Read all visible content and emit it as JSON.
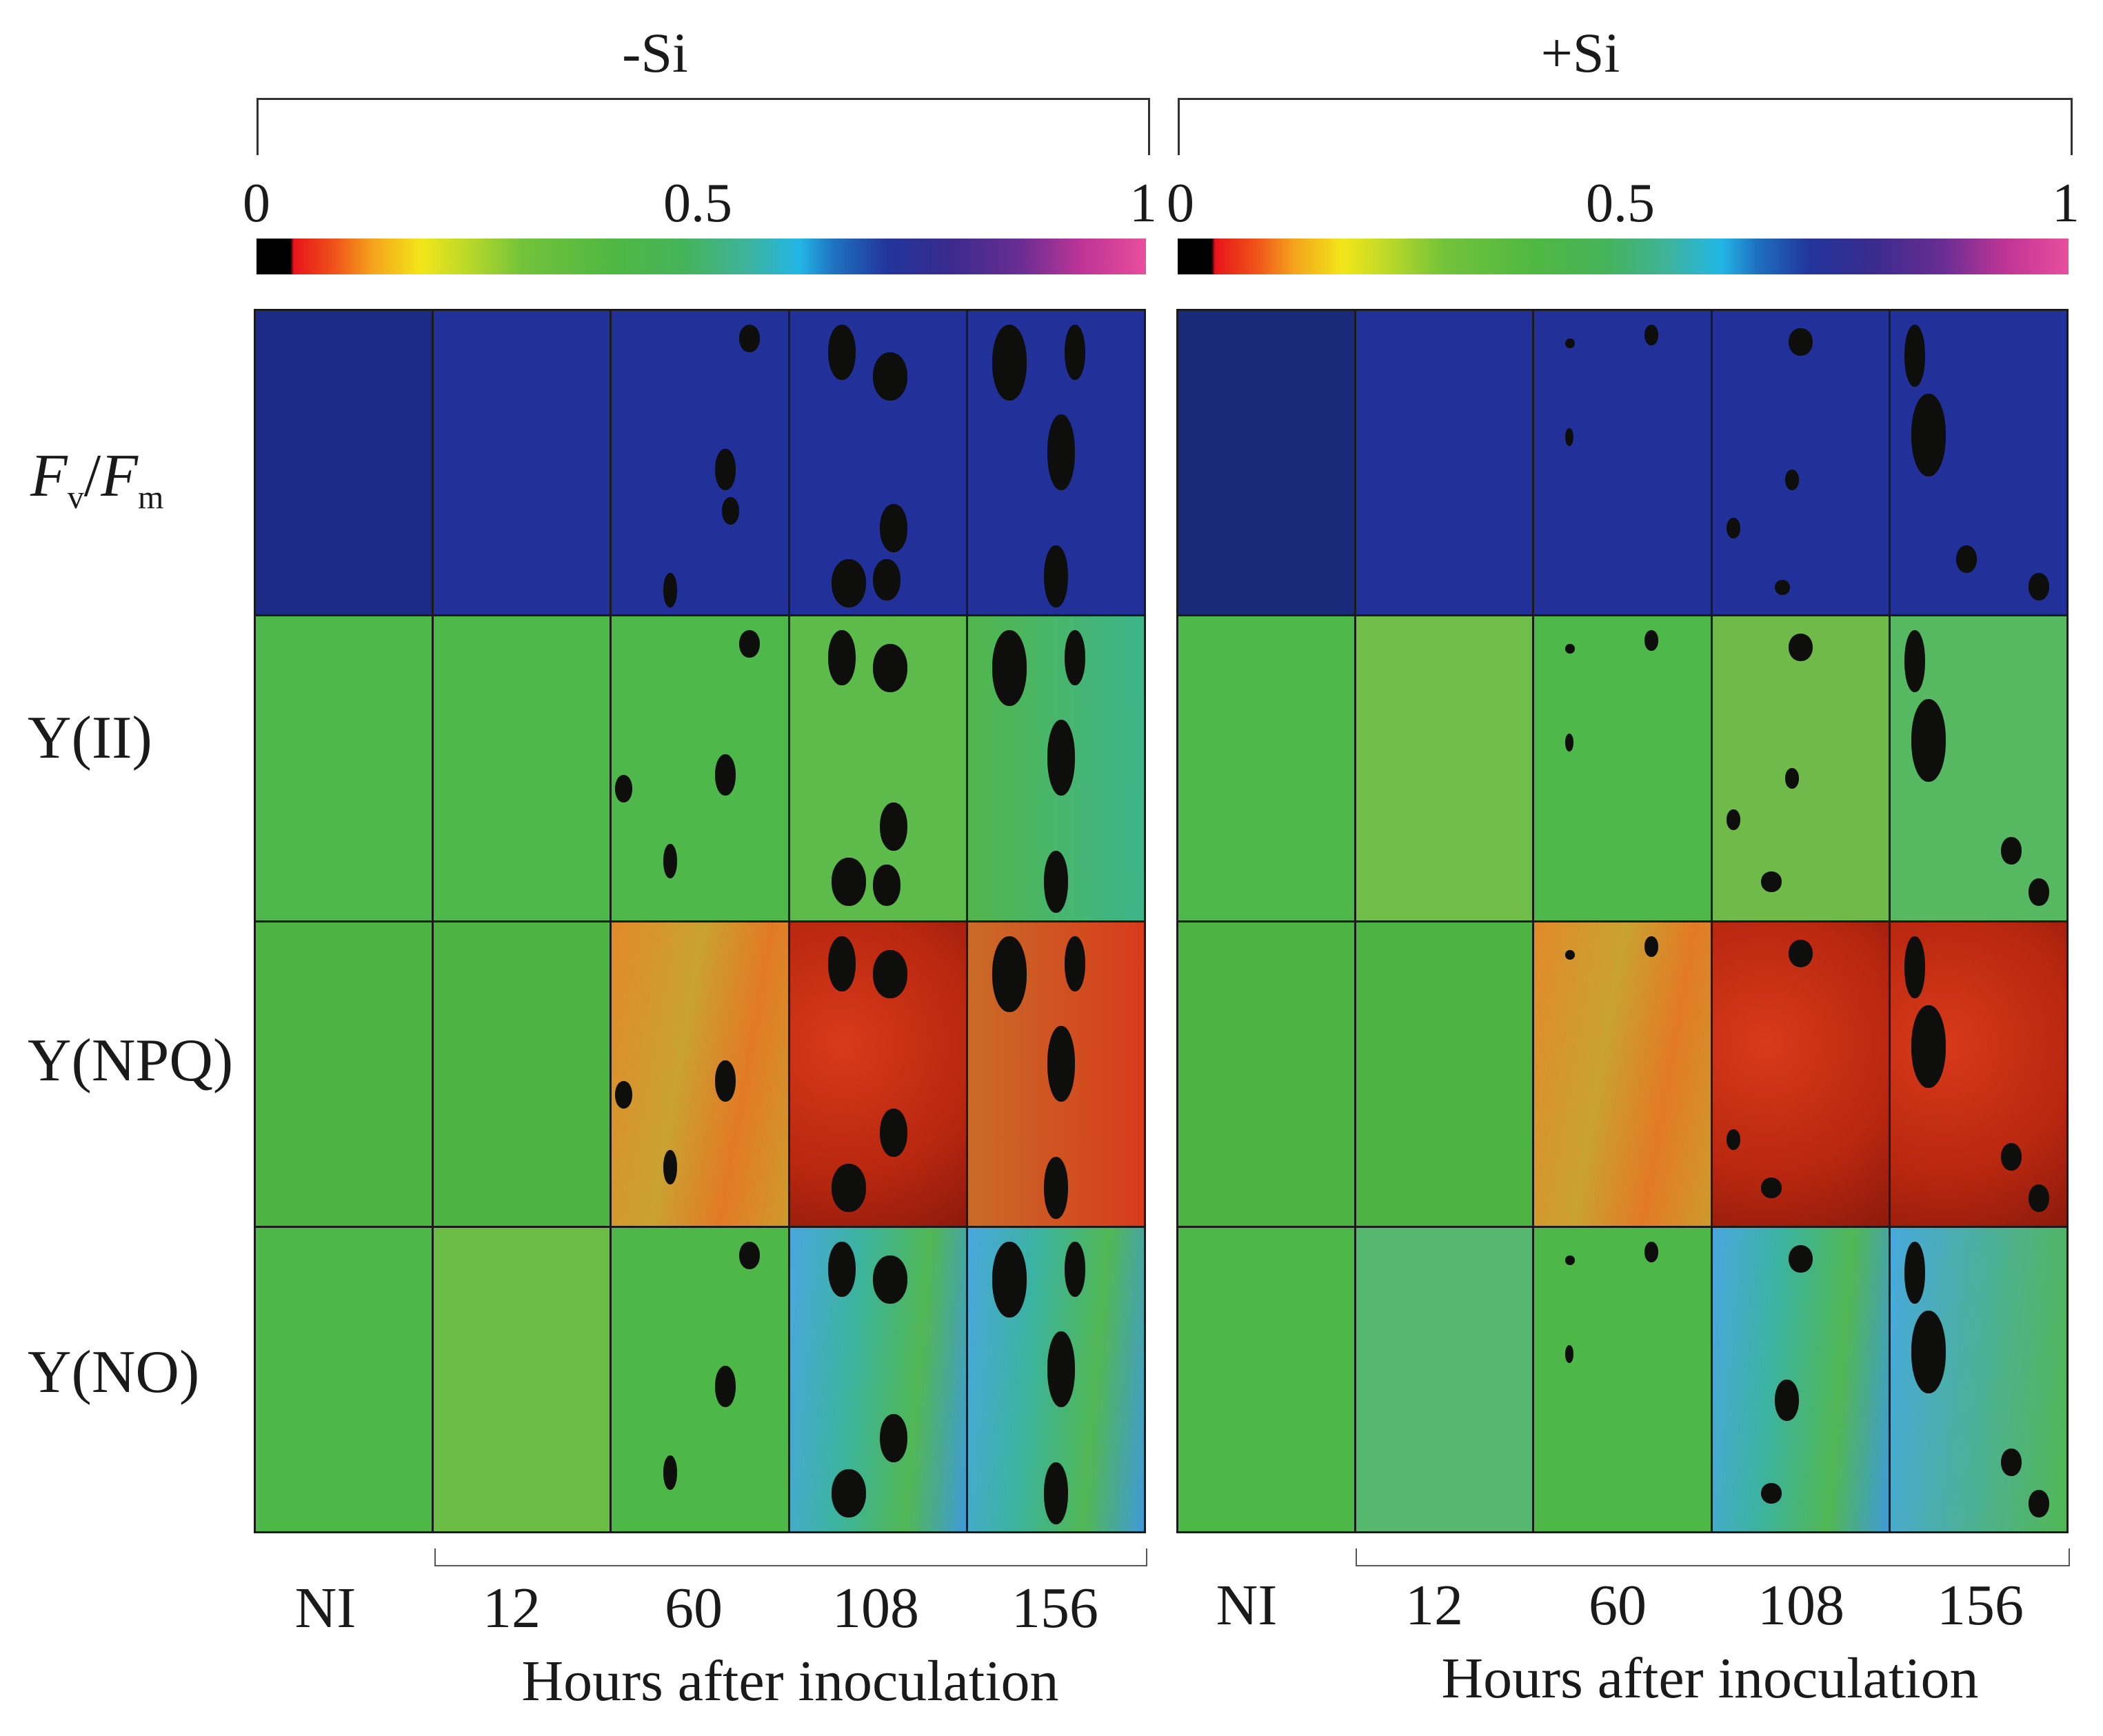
{
  "figure": {
    "groups": [
      {
        "id": "minus_si",
        "title": "-Si"
      },
      {
        "id": "plus_si",
        "title": "+Si"
      }
    ],
    "color_scale": {
      "min_label": "0",
      "mid_label": "0.5",
      "max_label": "1"
    },
    "row_labels": [
      {
        "main": "F",
        "sub": "v",
        "sep": "/",
        "main2": "F",
        "sub2": "m"
      },
      {
        "text": "Y(II)"
      },
      {
        "text": "Y(NPQ)"
      },
      {
        "text": "Y(NO)"
      }
    ],
    "column_labels": [
      "NI",
      "12",
      "60",
      "108",
      "156"
    ],
    "axis_title": "Hours after inoculation"
  }
}
